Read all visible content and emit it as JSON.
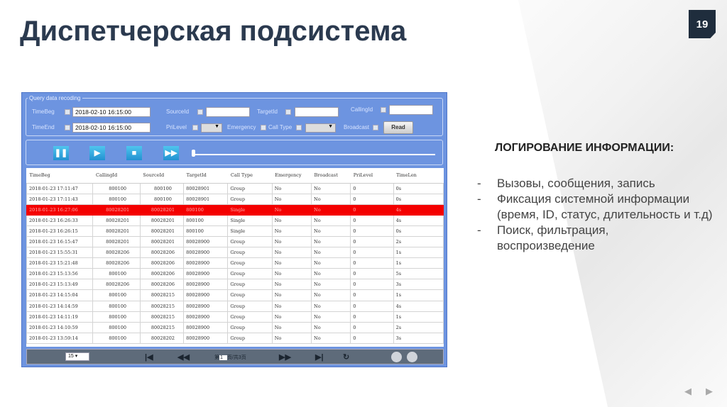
{
  "slide": {
    "title": "Диспетчерская подсистема",
    "number": "19",
    "heading": "ЛОГИРОВАНИЕ ИНФОРМАЦИИ:",
    "bullets": [
      "Вызовы, сообщения, запись",
      "Фиксация системной информации (время, ID, статус, длительность и т.д)",
      "Поиск, фильтрация, воспроизведение"
    ]
  },
  "query": {
    "legend": "Query data recoding",
    "time_beg_label": "TimeBeg",
    "time_beg": "2018-02-10 16:15:00",
    "time_end_label": "TimeEnd",
    "time_end": "2018-02-10 16:15:00",
    "source_label": "SourceId",
    "target_label": "TargetId",
    "calling_label": "CallingId",
    "prilevel_label": "PriLevel",
    "emergency_label": "Emergency",
    "calltype_label": "Call Type",
    "broadcast_label": "Broadcast",
    "read_label": "Read"
  },
  "playback": {
    "buttons": [
      "pause",
      "play",
      "stop",
      "fast-forward"
    ],
    "progress": 0
  },
  "table": {
    "columns": [
      "TimeBeg",
      "CallingId",
      "SourceId",
      "TargetId",
      "Call Type",
      "Emergency",
      "Broadcast",
      "PriLevel",
      "TimeLen"
    ],
    "rows": [
      [
        "2018-01-23 17:11:47",
        "800100",
        "800100",
        "80028901",
        "Group",
        "No",
        "No",
        "0",
        "0s"
      ],
      [
        "2018-01-23 17:11:43",
        "800100",
        "800100",
        "80028901",
        "Group",
        "No",
        "No",
        "0",
        "0s"
      ],
      [
        "2018-01-23 16:27:06",
        "80028201",
        "80028201",
        "800100",
        "Single",
        "No",
        "No",
        "0",
        "4s"
      ],
      [
        "2018-01-23 16:26:33",
        "80028201",
        "80028201",
        "800100",
        "Single",
        "No",
        "No",
        "0",
        "4s"
      ],
      [
        "2018-01-23 16:26:15",
        "80028201",
        "80028201",
        "800100",
        "Single",
        "No",
        "No",
        "0",
        "0s"
      ],
      [
        "2018-01-23 16:15:47",
        "80028201",
        "80028201",
        "80028900",
        "Group",
        "No",
        "No",
        "0",
        "2s"
      ],
      [
        "2018-01-23 15:55:31",
        "80028206",
        "80028206",
        "80028900",
        "Group",
        "No",
        "No",
        "0",
        "1s"
      ],
      [
        "2018-01-23 15:21:48",
        "80028206",
        "80028206",
        "80028900",
        "Group",
        "No",
        "No",
        "0",
        "1s"
      ],
      [
        "2018-01-23 15:13:56",
        "800100",
        "80028206",
        "80028900",
        "Group",
        "No",
        "No",
        "0",
        "5s"
      ],
      [
        "2018-01-23 15:13:49",
        "80028206",
        "80028206",
        "80028900",
        "Group",
        "No",
        "No",
        "0",
        "3s"
      ],
      [
        "2018-01-23 14:15:04",
        "800100",
        "80028215",
        "80028900",
        "Group",
        "No",
        "No",
        "0",
        "1s"
      ],
      [
        "2018-01-23 14:14:59",
        "800100",
        "80028215",
        "80028900",
        "Group",
        "No",
        "No",
        "0",
        "4s"
      ],
      [
        "2018-01-23 14:11:19",
        "800100",
        "80028215",
        "80028900",
        "Group",
        "No",
        "No",
        "0",
        "1s"
      ],
      [
        "2018-01-23 14:10:59",
        "800100",
        "80028215",
        "80028900",
        "Group",
        "No",
        "No",
        "0",
        "2s"
      ],
      [
        "2018-01-23 13:59:14",
        "800100",
        "80028202",
        "80028900",
        "Group",
        "No",
        "No",
        "0",
        "3s"
      ]
    ],
    "selected_row": 2,
    "highlight_color": "#f40000"
  },
  "pager": {
    "page_size": "15",
    "page_prefix": "第",
    "page": "1",
    "page_suffix": "页/共3页"
  }
}
